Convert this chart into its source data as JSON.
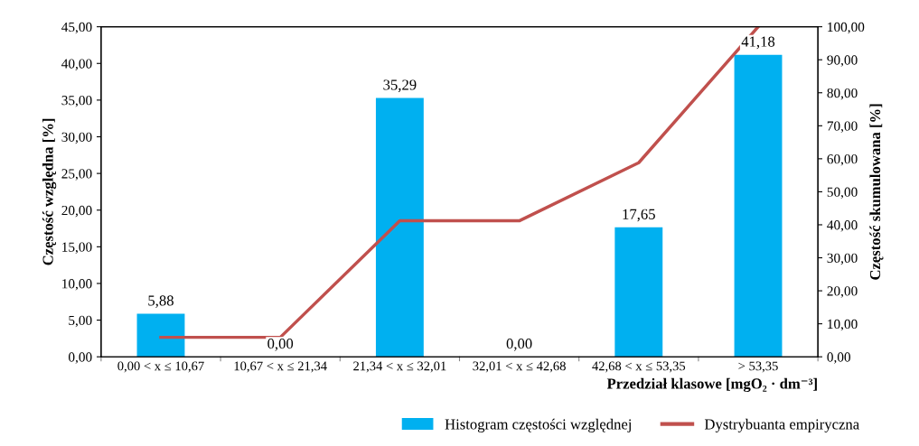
{
  "chart_data": {
    "type": "bar",
    "categories": [
      "0,00 < x ≤ 10,67",
      "10,67 < x ≤ 21,34",
      "21,34 < x ≤ 32,01",
      "32,01 < x ≤ 42,68",
      "42,68 < x ≤ 53,35",
      "> 53,35"
    ],
    "xlabel": "Przedział klasowe [mgO₂ · dm⁻³]",
    "ylabel": "Częstość względna [%]",
    "y2label": "Częstość skumulowana [%]",
    "series": [
      {
        "name": "Histogram częstości względnej",
        "color": "#00b0f0",
        "values": [
          5.88,
          0,
          35.29,
          0,
          17.65,
          41.18
        ],
        "value_labels": [
          "5,88",
          "0,00",
          "35,29",
          "0,00",
          "17,65",
          "41,18"
        ]
      },
      {
        "name": "Dystrybuanta empiryczna",
        "type": "line",
        "axis": "y2",
        "color": "#c0504d",
        "values": [
          5.9,
          5.9,
          41.2,
          41.2,
          58.8,
          100
        ]
      }
    ],
    "ylim": [
      0,
      45
    ],
    "yticks": [
      {
        "value": 0,
        "label": "0,00"
      },
      {
        "value": 5,
        "label": "5,00"
      },
      {
        "value": 10,
        "label": "10,00"
      },
      {
        "value": 15,
        "label": "15,00"
      },
      {
        "value": 20,
        "label": "20,00"
      },
      {
        "value": 25,
        "label": "25,00"
      },
      {
        "value": 30,
        "label": "30,00"
      },
      {
        "value": 35,
        "label": "35,00"
      },
      {
        "value": 40,
        "label": "40,00"
      },
      {
        "value": 45,
        "label": "45,00"
      }
    ],
    "y2lim": [
      0,
      100
    ],
    "y2ticks": [
      {
        "value": 0,
        "label": "0,00"
      },
      {
        "value": 10,
        "label": "10,00"
      },
      {
        "value": 20,
        "label": "20,00"
      },
      {
        "value": 30,
        "label": "30,00"
      },
      {
        "value": 40,
        "label": "40,00"
      },
      {
        "value": 50,
        "label": "50,00"
      },
      {
        "value": 60,
        "label": "60,00"
      },
      {
        "value": 70,
        "label": "70,00"
      },
      {
        "value": 80,
        "label": "80,00"
      },
      {
        "value": 90,
        "label": "90,00"
      },
      {
        "value": 100,
        "label": "100,00"
      }
    ],
    "grid": false,
    "legend": "bottom right",
    "marker": "none",
    "line_style": "solid"
  }
}
